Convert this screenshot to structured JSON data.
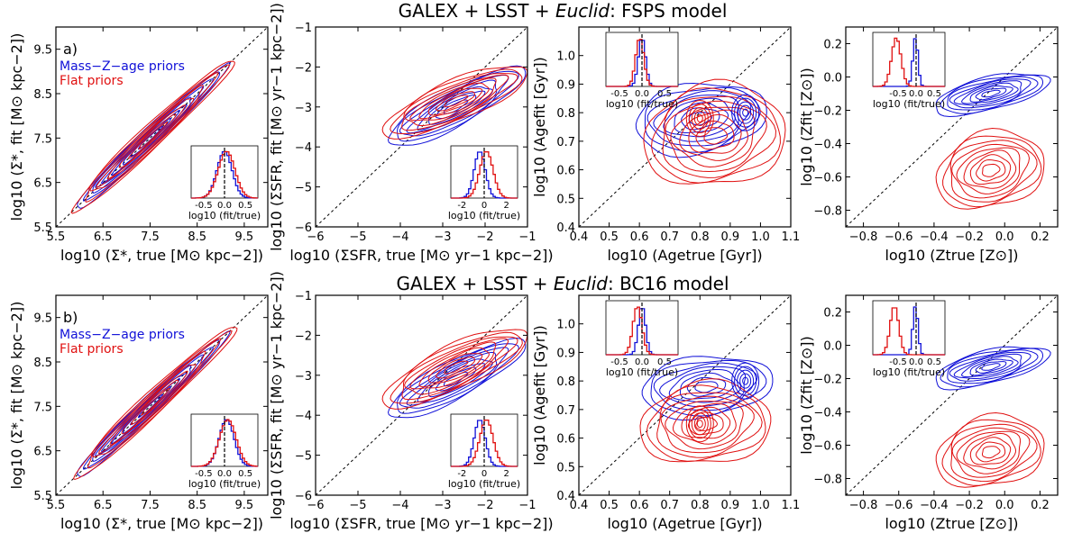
{
  "figure": {
    "row_titles": [
      {
        "pre": "GALEX + LSST + ",
        "ital": "Euclid",
        "post": ": FSPS model"
      },
      {
        "pre": "GALEX + LSST + ",
        "ital": "Euclid",
        "post": ": BC16 model"
      }
    ],
    "legend": {
      "mzage": "Mass−Z−age priors",
      "flat": "Flat priors"
    },
    "colors": {
      "mzage": "#1010d8",
      "flat": "#e01010",
      "diag": "#000000"
    }
  },
  "chart_data": [
    {
      "type": "contour",
      "row": 0,
      "col": 0,
      "panel_label": "a)",
      "title": "GALEX + LSST + Euclid: FSPS model",
      "xlabel": "log10 (Σ*, true [M⊙ kpc−2])",
      "ylabel": "log10 (Σ*, fit [M⊙ kpc−2])",
      "xlim": [
        5.5,
        10.0
      ],
      "ylim": [
        5.5,
        10.0
      ],
      "xticks": [
        "5.5",
        "6.5",
        "7.5",
        "8.5",
        "9.5"
      ],
      "yticks": [
        "5.5",
        "6.5",
        "7.5",
        "8.5",
        "9.5"
      ],
      "series": [
        {
          "name": "Mass−Z−age priors",
          "center": [
            7.5,
            7.5
          ],
          "sx": 0.9,
          "sy": 0.9,
          "rho": 0.985,
          "levels": 9
        },
        {
          "name": "Flat priors",
          "center": [
            7.55,
            7.55
          ],
          "sx": 0.95,
          "sy": 0.95,
          "rho": 0.98,
          "levels": 8
        }
      ],
      "inset": {
        "xlabel": "log10 (fit/true)",
        "xlim": [
          -0.8,
          0.8
        ],
        "xticks": [
          "-0.5",
          "0.0",
          "0.5"
        ],
        "mzage": {
          "c": 0.0,
          "s": 0.18
        },
        "flat": {
          "c": 0.05,
          "s": 0.2
        }
      }
    },
    {
      "type": "contour",
      "row": 0,
      "col": 1,
      "panel_label": "",
      "xlabel": "log10 (ΣSFR, true [M⊙ yr−1 kpc−2])",
      "ylabel": "log10 (ΣSFR, fit [M⊙ yr−1 kpc−2])",
      "xlim": [
        -6,
        -1
      ],
      "ylim": [
        -6,
        -1
      ],
      "xticks": [
        "−6",
        "−5",
        "−4",
        "−3",
        "−2",
        "−1"
      ],
      "yticks": [
        "−6",
        "−5",
        "−4",
        "−3",
        "−2",
        "−1"
      ],
      "series": [
        {
          "name": "Mass−Z−age priors",
          "center": [
            -2.7,
            -3.0
          ],
          "sx": 0.9,
          "sy": 0.55,
          "rho": 0.85,
          "levels": 8
        },
        {
          "name": "Flat priors",
          "center": [
            -2.7,
            -2.85
          ],
          "sx": 0.95,
          "sy": 0.5,
          "rho": 0.8,
          "levels": 9
        }
      ],
      "inset": {
        "xlabel": "log10 (fit/true)",
        "xlim": [
          -3,
          3
        ],
        "xticks": [
          "-2",
          "0",
          "2"
        ],
        "mzage": {
          "c": -0.4,
          "s": 0.5
        },
        "flat": {
          "c": 0.2,
          "s": 0.6
        }
      }
    },
    {
      "type": "contour",
      "row": 0,
      "col": 2,
      "panel_label": "",
      "xlabel": "log10 (Agetrue [Gyr])",
      "ylabel": "log10 (Agefit [Gyr])",
      "xlim": [
        0.4,
        1.1
      ],
      "ylim": [
        0.4,
        1.1
      ],
      "xticks": [
        "0.4",
        "0.5",
        "0.6",
        "0.7",
        "0.8",
        "0.9",
        "1.0",
        "1.1"
      ],
      "yticks": [
        "0.4",
        "0.5",
        "0.6",
        "0.7",
        "0.8",
        "0.9",
        "1.0"
      ],
      "series": [
        {
          "name": "Mass−Z−age priors",
          "center": [
            0.8,
            0.78
          ],
          "sx": 0.12,
          "sy": 0.07,
          "rho": 0.2,
          "levels": 8
        },
        {
          "name": "Flat priors",
          "center": [
            0.85,
            0.72
          ],
          "sx": 0.13,
          "sy": 0.1,
          "rho": 0.1,
          "levels": 9
        }
      ],
      "hotspots": [
        {
          "x": 0.95,
          "y": 0.8
        },
        {
          "x": 0.8,
          "y": 0.78
        }
      ],
      "inset": {
        "xlabel": "log10 (fit/true)",
        "xlim": [
          -0.8,
          0.8
        ],
        "xticks": [
          "-0.5",
          "0.0",
          "0.5"
        ],
        "mzage": {
          "c": 0.0,
          "s": 0.08
        },
        "flat": {
          "c": -0.05,
          "s": 0.09
        }
      }
    },
    {
      "type": "contour",
      "row": 0,
      "col": 3,
      "panel_label": "",
      "xlabel": "log10 (Ztrue [Z⊙])",
      "ylabel": "log10 (Zfit [Z⊙])",
      "xlim": [
        -0.9,
        0.3
      ],
      "ylim": [
        -0.9,
        0.3
      ],
      "xticks": [
        "−0.8",
        "−0.6",
        "−0.4",
        "−0.2",
        "0.0",
        "0.2"
      ],
      "yticks": [
        "−0.8",
        "−0.6",
        "−0.4",
        "−0.2",
        "0.0",
        "0.2"
      ],
      "series": [
        {
          "name": "Mass−Z−age priors",
          "center": [
            -0.08,
            -0.1
          ],
          "sx": 0.18,
          "sy": 0.07,
          "rho": 0.6,
          "levels": 9
        },
        {
          "name": "Flat priors",
          "center": [
            -0.08,
            -0.56
          ],
          "sx": 0.17,
          "sy": 0.13,
          "rho": 0.2,
          "levels": 9
        }
      ],
      "inset": {
        "xlabel": "log10 (fit/true)",
        "xlim": [
          -1.2,
          0.8
        ],
        "xticks": [
          "-0.5",
          "0.0",
          "0.5"
        ],
        "mzage": {
          "c": -0.02,
          "s": 0.07
        },
        "flat": {
          "c": -0.55,
          "s": 0.13
        }
      }
    },
    {
      "type": "contour",
      "row": 1,
      "col": 0,
      "panel_label": "b)",
      "title": "GALEX + LSST + Euclid: BC16 model",
      "xlabel": "log10 (Σ*, true [M⊙ kpc−2])",
      "ylabel": "log10 (Σ*, fit [M⊙ kpc−2])",
      "xlim": [
        5.5,
        10.0
      ],
      "ylim": [
        5.5,
        10.0
      ],
      "xticks": [
        "5.5",
        "6.5",
        "7.5",
        "8.5",
        "9.5"
      ],
      "yticks": [
        "5.5",
        "6.5",
        "7.5",
        "8.5",
        "9.5"
      ],
      "series": [
        {
          "name": "Mass−Z−age priors",
          "center": [
            7.5,
            7.5
          ],
          "sx": 0.9,
          "sy": 0.9,
          "rho": 0.985,
          "levels": 9
        },
        {
          "name": "Flat priors",
          "center": [
            7.6,
            7.6
          ],
          "sx": 0.95,
          "sy": 0.95,
          "rho": 0.98,
          "levels": 8
        }
      ],
      "inset": {
        "xlabel": "log10 (fit/true)",
        "xlim": [
          -0.8,
          0.8
        ],
        "xticks": [
          "-0.5",
          "0.0",
          "0.5"
        ],
        "mzage": {
          "c": 0.05,
          "s": 0.18
        },
        "flat": {
          "c": 0.08,
          "s": 0.2
        }
      }
    },
    {
      "type": "contour",
      "row": 1,
      "col": 1,
      "panel_label": "",
      "xlabel": "log10 (ΣSFR, true [M⊙ yr−1 kpc−2])",
      "ylabel": "log10 (ΣSFR, fit [M⊙ yr−1 kpc−2])",
      "xlim": [
        -6,
        -1
      ],
      "ylim": [
        -6,
        -1
      ],
      "xticks": [
        "−6",
        "−5",
        "−4",
        "−3",
        "−2",
        "−1"
      ],
      "yticks": [
        "−6",
        "−5",
        "−4",
        "−3",
        "−2",
        "−1"
      ],
      "series": [
        {
          "name": "Mass−Z−age priors",
          "center": [
            -2.7,
            -3.1
          ],
          "sx": 0.9,
          "sy": 0.55,
          "rho": 0.85,
          "levels": 8
        },
        {
          "name": "Flat priors",
          "center": [
            -2.7,
            -2.8
          ],
          "sx": 0.95,
          "sy": 0.55,
          "rho": 0.8,
          "levels": 9
        }
      ],
      "inset": {
        "xlabel": "log10 (fit/true)",
        "xlim": [
          -3,
          3
        ],
        "xticks": [
          "-2",
          "0",
          "2"
        ],
        "mzage": {
          "c": -0.4,
          "s": 0.5
        },
        "flat": {
          "c": 0.2,
          "s": 0.6
        }
      }
    },
    {
      "type": "contour",
      "row": 1,
      "col": 2,
      "panel_label": "",
      "xlabel": "log10 (Agetrue [Gyr])",
      "ylabel": "log10 (Agefit [Gyr])",
      "xlim": [
        0.4,
        1.1
      ],
      "ylim": [
        0.4,
        1.1
      ],
      "xticks": [
        "0.4",
        "0.5",
        "0.6",
        "0.7",
        "0.8",
        "0.9",
        "1.0",
        "1.1"
      ],
      "yticks": [
        "0.4",
        "0.5",
        "0.6",
        "0.7",
        "0.8",
        "0.9",
        "1.0"
      ],
      "series": [
        {
          "name": "Mass−Z−age priors",
          "center": [
            0.82,
            0.78
          ],
          "sx": 0.12,
          "sy": 0.06,
          "rho": 0.2,
          "levels": 8
        },
        {
          "name": "Flat priors",
          "center": [
            0.82,
            0.65
          ],
          "sx": 0.12,
          "sy": 0.08,
          "rho": 0.1,
          "levels": 9
        }
      ],
      "hotspots": [
        {
          "x": 0.95,
          "y": 0.8
        },
        {
          "x": 0.8,
          "y": 0.65
        }
      ],
      "inset": {
        "xlabel": "log10 (fit/true)",
        "xlim": [
          -0.8,
          0.8
        ],
        "xticks": [
          "-0.5",
          "0.0",
          "0.5"
        ],
        "mzage": {
          "c": 0.0,
          "s": 0.08
        },
        "flat": {
          "c": -0.1,
          "s": 0.1
        }
      }
    },
    {
      "type": "contour",
      "row": 1,
      "col": 3,
      "panel_label": "",
      "xlabel": "log10 (Ztrue [Z⊙])",
      "ylabel": "log10 (Zfit [Z⊙])",
      "xlim": [
        -0.9,
        0.3
      ],
      "ylim": [
        -0.9,
        0.3
      ],
      "xticks": [
        "−0.8",
        "−0.6",
        "−0.4",
        "−0.2",
        "0.0",
        "0.2"
      ],
      "yticks": [
        "−0.8",
        "−0.6",
        "−0.4",
        "−0.2",
        "0.0",
        "0.2"
      ],
      "series": [
        {
          "name": "Mass−Z−age priors",
          "center": [
            -0.08,
            -0.13
          ],
          "sx": 0.18,
          "sy": 0.07,
          "rho": 0.6,
          "levels": 9
        },
        {
          "name": "Flat priors",
          "center": [
            -0.08,
            -0.64
          ],
          "sx": 0.17,
          "sy": 0.12,
          "rho": 0.2,
          "levels": 9
        }
      ],
      "inset": {
        "xlabel": "log10 (fit/true)",
        "xlim": [
          -1.2,
          0.8
        ],
        "xticks": [
          "-0.5",
          "0.0",
          "0.5"
        ],
        "mzage": {
          "c": -0.02,
          "s": 0.07
        },
        "flat": {
          "c": -0.6,
          "s": 0.12
        }
      }
    }
  ]
}
